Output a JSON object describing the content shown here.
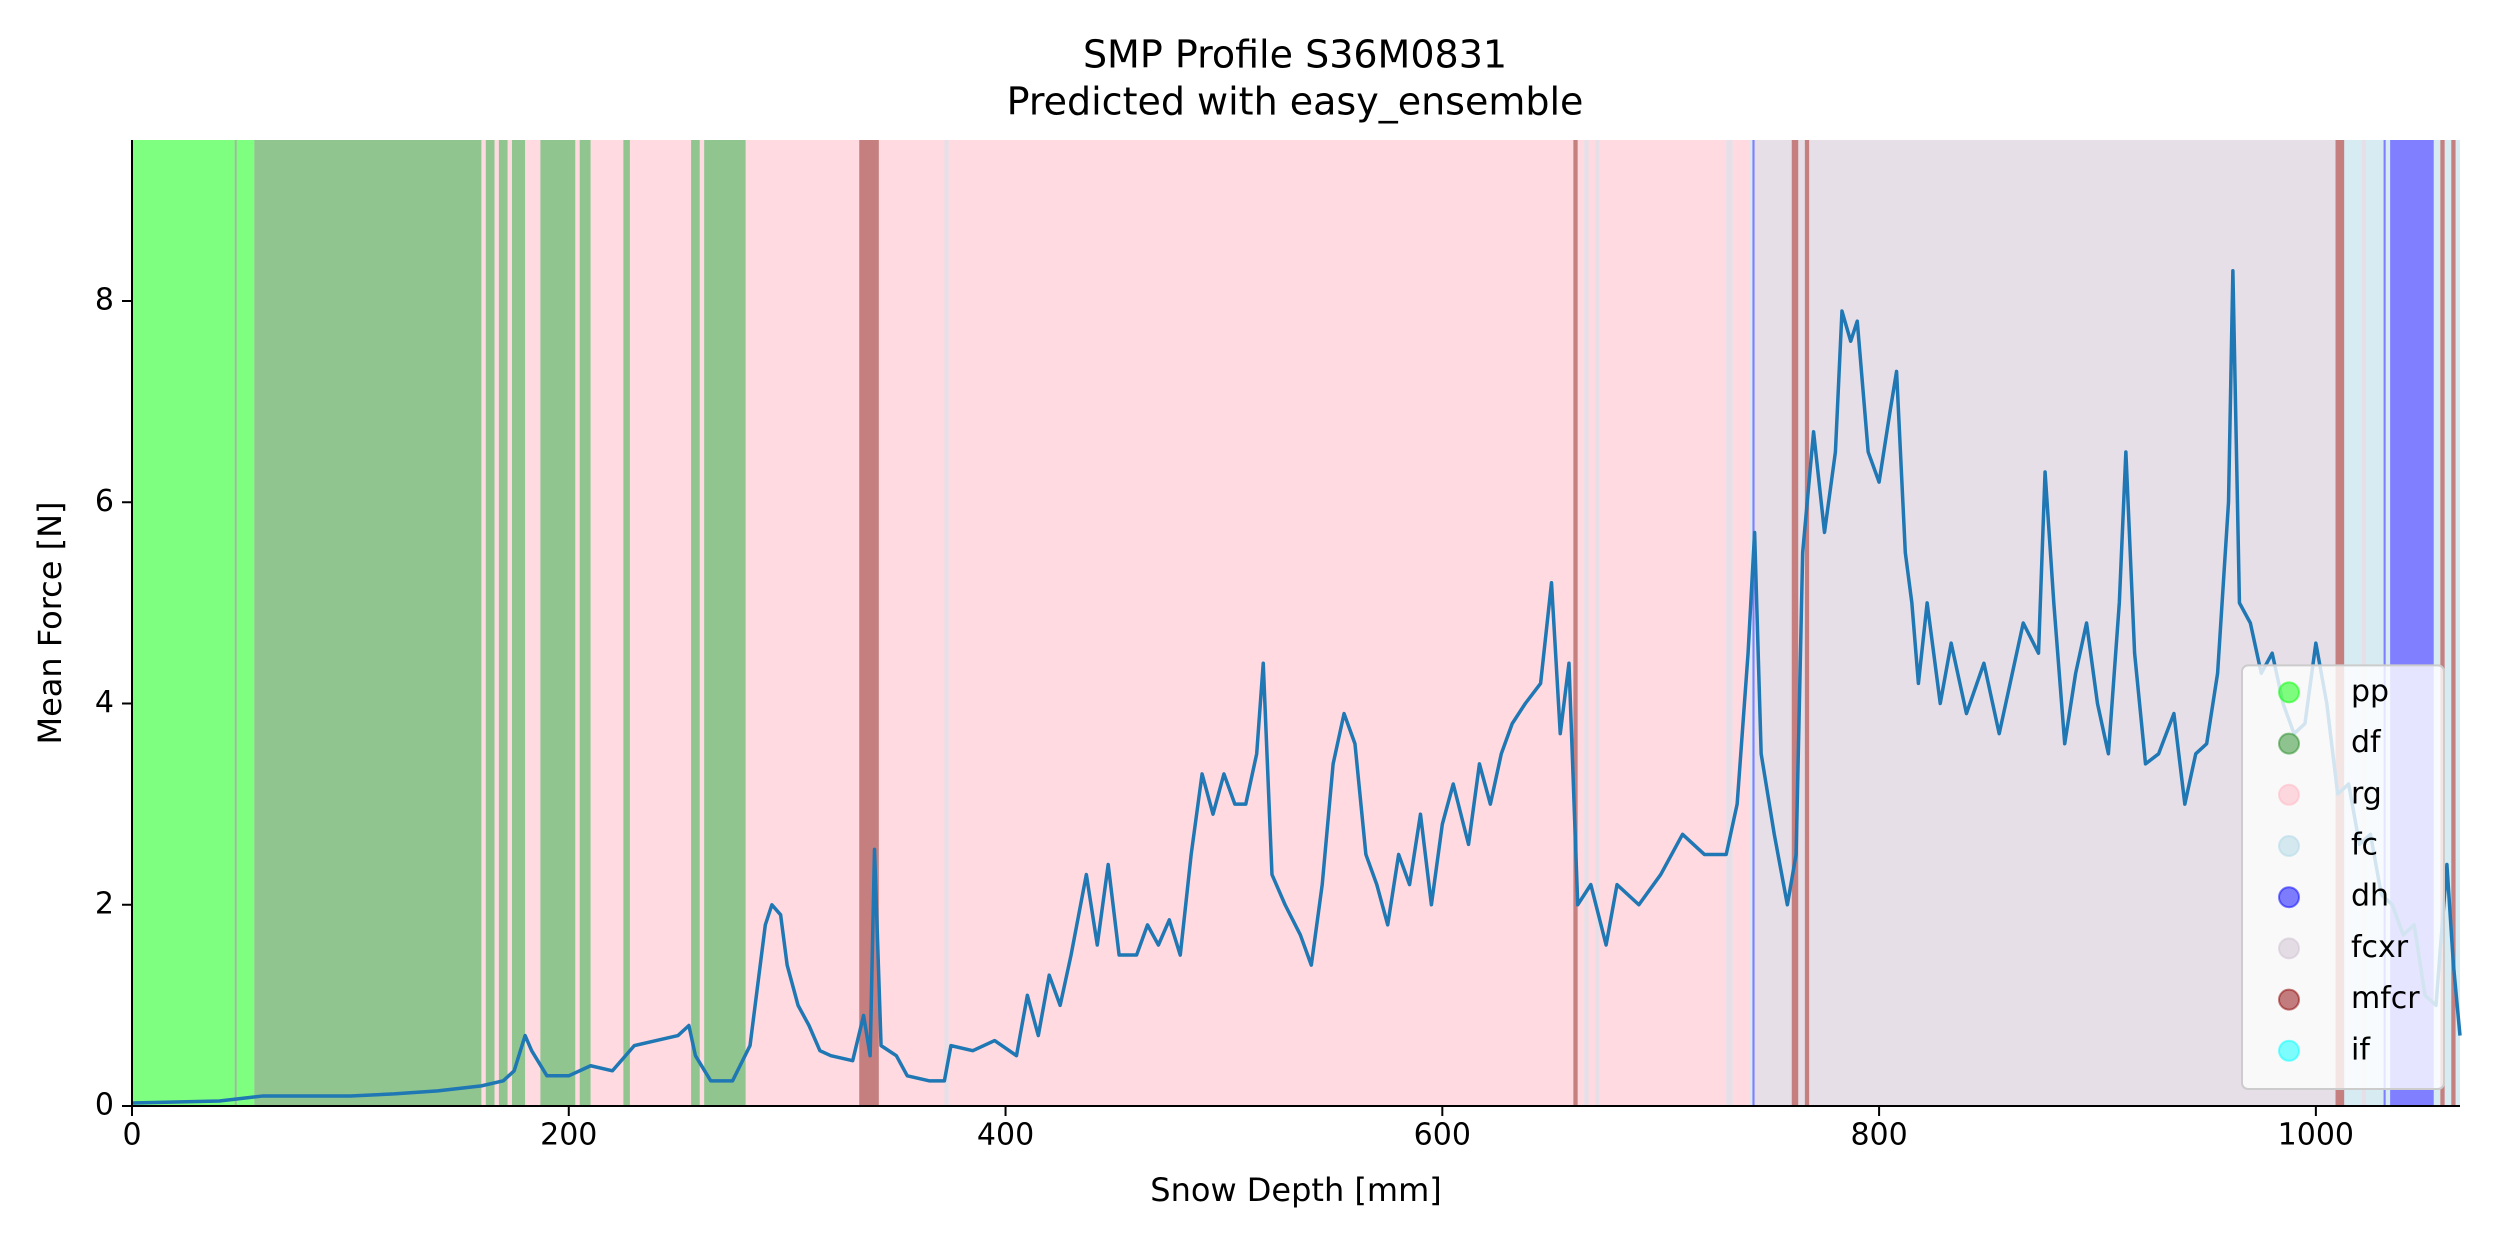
{
  "chart_data": {
    "type": "line",
    "title": "SMP Profile S36M0831",
    "subtitle": "Predicted with easy_ensemble",
    "x_label": "Snow Depth [mm]",
    "y_label": "Mean Force [N]",
    "xlim": [
      0,
      1066
    ],
    "ylim": [
      0,
      9.6
    ],
    "xticks": [
      0,
      200,
      400,
      600,
      800,
      1000
    ],
    "yticks": [
      0,
      2,
      4,
      6,
      8
    ],
    "legend_position": "lower right",
    "classes": [
      {
        "name": "pp",
        "color": "#00ff00"
      },
      {
        "name": "df",
        "color": "#228b22"
      },
      {
        "name": "rg",
        "color": "#ffb6c1"
      },
      {
        "name": "fc",
        "color": "#add8e6"
      },
      {
        "name": "dh",
        "color": "#0000ff"
      },
      {
        "name": "fcxr",
        "color": "#cdbfd0"
      },
      {
        "name": "mfcr",
        "color": "#8b0000"
      },
      {
        "name": "if",
        "color": "#00ffff"
      }
    ],
    "spans": [
      {
        "start": 0,
        "end": 47,
        "class": "pp"
      },
      {
        "start": 47,
        "end": 48,
        "class": "df"
      },
      {
        "start": 48,
        "end": 56,
        "class": "pp"
      },
      {
        "start": 56,
        "end": 160,
        "class": "df"
      },
      {
        "start": 160,
        "end": 162,
        "class": "rg"
      },
      {
        "start": 162,
        "end": 166,
        "class": "df"
      },
      {
        "start": 166,
        "end": 168,
        "class": "rg"
      },
      {
        "start": 168,
        "end": 172,
        "class": "df"
      },
      {
        "start": 172,
        "end": 174,
        "class": "rg"
      },
      {
        "start": 174,
        "end": 180,
        "class": "df"
      },
      {
        "start": 180,
        "end": 187,
        "class": "rg"
      },
      {
        "start": 187,
        "end": 203,
        "class": "df"
      },
      {
        "start": 203,
        "end": 205,
        "class": "rg"
      },
      {
        "start": 205,
        "end": 210,
        "class": "df"
      },
      {
        "start": 210,
        "end": 225,
        "class": "rg"
      },
      {
        "start": 225,
        "end": 228,
        "class": "df"
      },
      {
        "start": 228,
        "end": 256,
        "class": "rg"
      },
      {
        "start": 256,
        "end": 260,
        "class": "df"
      },
      {
        "start": 260,
        "end": 262,
        "class": "rg"
      },
      {
        "start": 262,
        "end": 281,
        "class": "df"
      },
      {
        "start": 281,
        "end": 333,
        "class": "rg"
      },
      {
        "start": 333,
        "end": 342,
        "class": "mfcr"
      },
      {
        "start": 342,
        "end": 372,
        "class": "rg"
      },
      {
        "start": 372,
        "end": 374,
        "class": "fcxr"
      },
      {
        "start": 374,
        "end": 660,
        "class": "rg"
      },
      {
        "start": 660,
        "end": 662,
        "class": "mfcr"
      },
      {
        "start": 662,
        "end": 665,
        "class": "rg"
      },
      {
        "start": 665,
        "end": 667,
        "class": "fcxr"
      },
      {
        "start": 667,
        "end": 670,
        "class": "rg"
      },
      {
        "start": 670,
        "end": 672,
        "class": "fcxr"
      },
      {
        "start": 672,
        "end": 730,
        "class": "rg"
      },
      {
        "start": 730,
        "end": 733,
        "class": "fcxr"
      },
      {
        "start": 733,
        "end": 741,
        "class": "rg"
      },
      {
        "start": 741,
        "end": 742,
        "class": "fc"
      },
      {
        "start": 742,
        "end": 743,
        "class": "dh"
      },
      {
        "start": 743,
        "end": 760,
        "class": "fcxr"
      },
      {
        "start": 760,
        "end": 763,
        "class": "mfcr"
      },
      {
        "start": 763,
        "end": 766,
        "class": "fcxr"
      },
      {
        "start": 766,
        "end": 768,
        "class": "mfcr"
      },
      {
        "start": 768,
        "end": 1009,
        "class": "fcxr"
      },
      {
        "start": 1009,
        "end": 1013,
        "class": "mfcr"
      },
      {
        "start": 1013,
        "end": 1021,
        "class": "fc"
      },
      {
        "start": 1021,
        "end": 1023,
        "class": "fcxr"
      },
      {
        "start": 1023,
        "end": 1031,
        "class": "fc"
      },
      {
        "start": 1031,
        "end": 1032,
        "class": "dh"
      },
      {
        "start": 1032,
        "end": 1034,
        "class": "fc"
      },
      {
        "start": 1034,
        "end": 1054,
        "class": "dh"
      },
      {
        "start": 1054,
        "end": 1057,
        "class": "fc"
      },
      {
        "start": 1057,
        "end": 1059,
        "class": "mfcr"
      },
      {
        "start": 1059,
        "end": 1062,
        "class": "fc"
      },
      {
        "start": 1062,
        "end": 1064,
        "class": "mfcr"
      },
      {
        "start": 1064,
        "end": 1066,
        "class": "fc"
      }
    ],
    "x": [
      0,
      20,
      40,
      60,
      80,
      100,
      120,
      140,
      160,
      170,
      175,
      180,
      183,
      190,
      200,
      210,
      220,
      230,
      240,
      250,
      255,
      258,
      265,
      275,
      283,
      290,
      293,
      297,
      300,
      305,
      310,
      315,
      320,
      330,
      335,
      338,
      340,
      343,
      350,
      355,
      365,
      372,
      375,
      385,
      395,
      405,
      410,
      415,
      420,
      425,
      430,
      437,
      442,
      447,
      452,
      460,
      465,
      470,
      475,
      480,
      485,
      490,
      495,
      500,
      505,
      510,
      515,
      518,
      522,
      528,
      535,
      540,
      545,
      550,
      555,
      560,
      565,
      570,
      575,
      580,
      585,
      590,
      595,
      600,
      605,
      612,
      617,
      622,
      627,
      632,
      638,
      645,
      650,
      654,
      658,
      662,
      668,
      675,
      680,
      690,
      700,
      710,
      720,
      730,
      735,
      740,
      743,
      746,
      752,
      758,
      762,
      765,
      770,
      775,
      780,
      783,
      787,
      790,
      795,
      800,
      805,
      808,
      812,
      815,
      818,
      822,
      828,
      833,
      840,
      848,
      855,
      860,
      866,
      873,
      876,
      880,
      885,
      890,
      895,
      900,
      905,
      910,
      913,
      917,
      922,
      928,
      935,
      940,
      945,
      950,
      955,
      960,
      962,
      965,
      970,
      975,
      980,
      985,
      990,
      995,
      1000,
      1005,
      1010,
      1015,
      1020,
      1025,
      1030,
      1035,
      1040,
      1045,
      1050,
      1055,
      1060,
      1063,
      1066
    ],
    "series": [
      {
        "color": "#1f77b4",
        "values": [
          0.03,
          0.04,
          0.05,
          0.1,
          0.1,
          0.1,
          0.12,
          0.15,
          0.2,
          0.25,
          0.35,
          0.7,
          0.55,
          0.3,
          0.3,
          0.4,
          0.35,
          0.6,
          0.65,
          0.7,
          0.8,
          0.5,
          0.25,
          0.25,
          0.6,
          1.8,
          2.0,
          1.9,
          1.4,
          1.0,
          0.8,
          0.55,
          0.5,
          0.45,
          0.9,
          0.5,
          2.55,
          0.6,
          0.5,
          0.3,
          0.25,
          0.25,
          0.6,
          0.55,
          0.65,
          0.5,
          1.1,
          0.7,
          1.3,
          1.0,
          1.5,
          2.3,
          1.6,
          2.4,
          1.5,
          1.5,
          1.8,
          1.6,
          1.85,
          1.5,
          2.5,
          3.3,
          2.9,
          3.3,
          3.0,
          3.0,
          3.5,
          4.4,
          2.3,
          2.0,
          1.7,
          1.4,
          2.2,
          3.4,
          3.9,
          3.6,
          2.5,
          2.2,
          1.8,
          2.5,
          2.2,
          2.9,
          2.0,
          2.8,
          3.2,
          2.6,
          3.4,
          3.0,
          3.5,
          3.8,
          4.0,
          4.2,
          5.2,
          3.7,
          4.4,
          2.0,
          2.2,
          1.6,
          2.2,
          2.0,
          2.3,
          2.7,
          2.5,
          2.5,
          3.0,
          4.5,
          5.7,
          3.5,
          2.7,
          2.0,
          2.5,
          5.5,
          6.7,
          5.7,
          6.5,
          7.9,
          7.6,
          7.8,
          6.5,
          6.2,
          6.9,
          7.3,
          5.5,
          5.0,
          4.2,
          5.0,
          4.0,
          4.6,
          3.9,
          4.4,
          3.7,
          4.2,
          4.8,
          4.5,
          6.3,
          5.0,
          3.6,
          4.3,
          4.8,
          4.0,
          3.5,
          5.0,
          6.5,
          4.5,
          3.4,
          3.5,
          3.9,
          3.0,
          3.5,
          3.6,
          4.3,
          6.0,
          8.3,
          5.0,
          4.8,
          4.3,
          4.5,
          4.0,
          3.7,
          3.8,
          4.6,
          4.0,
          3.1,
          3.2,
          2.6,
          2.7,
          2.1,
          2.0,
          1.7,
          1.8,
          1.1,
          1.0,
          2.4,
          1.4,
          0.7
        ]
      }
    ]
  }
}
